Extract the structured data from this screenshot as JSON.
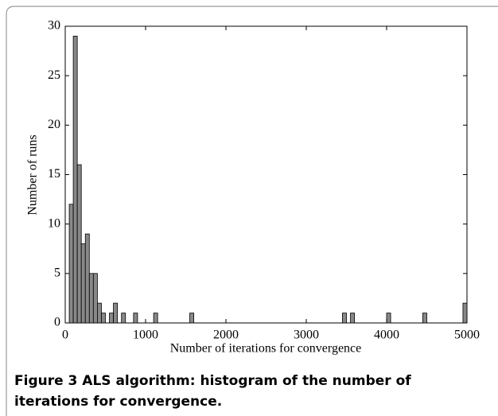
{
  "chart_data": {
    "type": "histogram",
    "xlabel": "Number of iterations for convergence",
    "ylabel": "Number of runs",
    "bins": [
      50,
      100,
      150,
      200,
      250,
      300,
      350,
      400,
      450,
      500,
      550,
      600,
      650,
      700,
      750,
      800,
      850,
      900,
      950,
      1000,
      1050,
      1100,
      1150,
      1200,
      1250,
      1300,
      1350,
      1400,
      1450,
      1500,
      1550,
      1600,
      1650,
      1700,
      1750,
      1800,
      1850,
      1900,
      1950,
      2000,
      2050,
      2100,
      2150,
      2200,
      2250,
      2300,
      2350,
      2400,
      2450,
      2500,
      2550,
      2600,
      2650,
      2700,
      2750,
      2800,
      2850,
      2900,
      2950,
      3000,
      3050,
      3100,
      3150,
      3200,
      3250,
      3300,
      3350,
      3400,
      3450,
      3500,
      3550,
      3600,
      3650,
      3700,
      3750,
      3800,
      3850,
      3900,
      3950,
      4000,
      4050,
      4100,
      4150,
      4200,
      4250,
      4300,
      4350,
      4400,
      4450,
      4500,
      4550,
      4600,
      4650,
      4700,
      4750,
      4800,
      4850,
      4900,
      4950,
      5000
    ],
    "values": [
      12,
      29,
      16,
      8,
      9,
      5,
      5,
      2,
      1,
      0,
      1,
      2,
      0,
      1,
      0,
      0,
      1,
      0,
      0,
      0,
      0,
      1,
      0,
      0,
      0,
      0,
      0,
      0,
      0,
      0,
      1,
      0,
      0,
      0,
      0,
      0,
      0,
      0,
      0,
      0,
      0,
      0,
      0,
      0,
      0,
      0,
      0,
      0,
      0,
      0,
      0,
      0,
      0,
      0,
      0,
      0,
      0,
      0,
      0,
      0,
      0,
      0,
      0,
      0,
      0,
      0,
      0,
      0,
      1,
      0,
      1,
      0,
      0,
      0,
      0,
      0,
      0,
      0,
      0,
      1,
      0,
      0,
      0,
      0,
      0,
      0,
      0,
      0,
      1,
      0,
      0,
      0,
      0,
      0,
      0,
      0,
      0,
      0,
      2
    ],
    "color": "#888888",
    "xlim": [
      0,
      5000
    ],
    "xticks": [
      0,
      1000,
      2000,
      3000,
      4000,
      5000
    ],
    "ylim": [
      0,
      30
    ],
    "yticks": [
      0,
      5,
      10,
      15,
      20,
      25,
      30
    ],
    "grid": false
  },
  "caption": {
    "label": "Figure 3",
    "text": "ALS algorithm: histogram of the number of iterations for convergence."
  }
}
